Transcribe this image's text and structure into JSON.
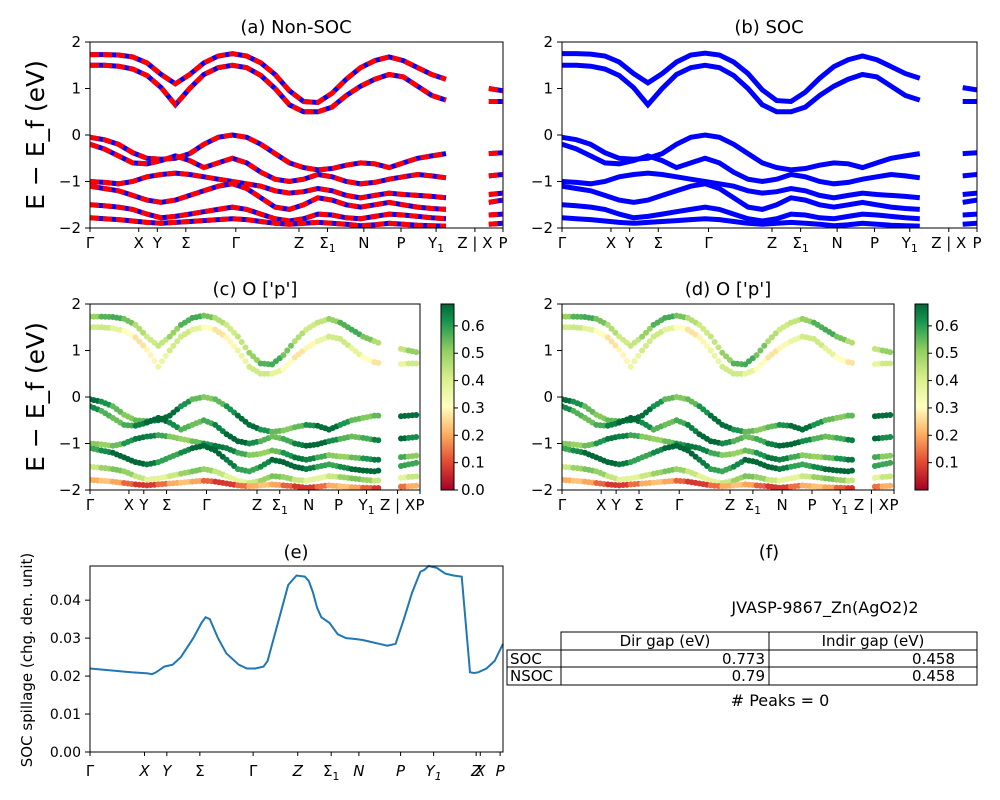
{
  "figure": {
    "ylabel_main": "E − E_f (eV)",
    "ylabel_spill": "SOC spillage (chg. den. unit)"
  },
  "bands_x_ticks": [
    "Γ",
    "X",
    "Y",
    "Σ",
    "Γ",
    "Z",
    "Σ1",
    "N",
    "P",
    "Y1",
    "Z | X",
    "P"
  ],
  "band_y_ticks": [
    "2",
    "1",
    "0",
    "−1",
    "−2"
  ],
  "colorbar_c": {
    "ticks": [
      "0.6",
      "0.5",
      "0.4",
      "0.3",
      "0.2",
      "0.1",
      "0.0"
    ]
  },
  "colorbar_d": {
    "ticks": [
      "0.6",
      "0.5",
      "0.4",
      "0.3",
      "0.2",
      "0.1"
    ]
  },
  "chart_data": [
    {
      "id": "a",
      "type": "line",
      "title": "(a) Non-SOC",
      "ylabel": "E − E_f (eV)",
      "ylim": [
        -2,
        2
      ],
      "colors": [
        "#ff0000",
        "#0000ff"
      ],
      "note_series": "spin-up and spin-down bands drawn as red/blue dashes",
      "series": [
        {
          "values": [
            1.73,
            1.73,
            1.72,
            1.68,
            1.55,
            1.3,
            1.1,
            1.3,
            1.55,
            1.7,
            1.75,
            1.7,
            1.55,
            1.3,
            0.95,
            0.72,
            0.7,
            0.9,
            1.2,
            1.45,
            1.6,
            1.68,
            1.6,
            1.45,
            1.3,
            1.2,
            1.1,
            1.05,
            1.0,
            0.95
          ]
        },
        {
          "values": [
            1.5,
            1.5,
            1.48,
            1.42,
            1.28,
            1.02,
            0.65,
            1.0,
            1.3,
            1.45,
            1.5,
            1.45,
            1.28,
            1.0,
            0.65,
            0.5,
            0.5,
            0.6,
            0.85,
            1.05,
            1.2,
            1.3,
            1.25,
            1.05,
            0.85,
            0.75,
            0.7,
            0.7,
            0.72,
            0.72
          ]
        },
        {
          "values": [
            -0.05,
            -0.1,
            -0.2,
            -0.38,
            -0.5,
            -0.52,
            -0.5,
            -0.4,
            -0.2,
            -0.05,
            0.0,
            -0.05,
            -0.2,
            -0.4,
            -0.6,
            -0.7,
            -0.75,
            -0.72,
            -0.65,
            -0.6,
            -0.62,
            -0.7,
            -0.6,
            -0.5,
            -0.45,
            -0.4,
            -0.4,
            -0.42,
            -0.4,
            -0.38
          ]
        },
        {
          "values": [
            -0.2,
            -0.3,
            -0.45,
            -0.6,
            -0.62,
            -0.55,
            -0.45,
            -0.55,
            -0.7,
            -0.6,
            -0.5,
            -0.6,
            -0.8,
            -0.95,
            -1.0,
            -0.95,
            -0.85,
            -0.9,
            -1.0,
            -1.05,
            -1.02,
            -0.95,
            -0.9,
            -0.85,
            -0.88,
            -0.92,
            -0.95,
            -0.9,
            -0.88,
            -0.85
          ]
        },
        {
          "values": [
            -1.0,
            -1.02,
            -1.05,
            -1.0,
            -0.9,
            -0.85,
            -0.82,
            -0.85,
            -0.9,
            -0.95,
            -1.0,
            -1.05,
            -1.1,
            -1.2,
            -1.25,
            -1.22,
            -1.15,
            -1.2,
            -1.3,
            -1.35,
            -1.3,
            -1.25,
            -1.28,
            -1.3,
            -1.32,
            -1.35,
            -1.35,
            -1.3,
            -1.28,
            -1.25
          ]
        },
        {
          "values": [
            -1.1,
            -1.15,
            -1.2,
            -1.3,
            -1.4,
            -1.45,
            -1.4,
            -1.3,
            -1.2,
            -1.1,
            -1.05,
            -1.15,
            -1.35,
            -1.55,
            -1.6,
            -1.5,
            -1.35,
            -1.4,
            -1.5,
            -1.55,
            -1.5,
            -1.45,
            -1.5,
            -1.55,
            -1.58,
            -1.6,
            -1.55,
            -1.5,
            -1.45,
            -1.4
          ]
        },
        {
          "values": [
            -1.5,
            -1.52,
            -1.55,
            -1.6,
            -1.7,
            -1.78,
            -1.75,
            -1.7,
            -1.65,
            -1.6,
            -1.55,
            -1.6,
            -1.7,
            -1.8,
            -1.85,
            -1.8,
            -1.7,
            -1.72,
            -1.78,
            -1.8,
            -1.75,
            -1.7,
            -1.72,
            -1.75,
            -1.78,
            -1.8,
            -1.78,
            -1.75,
            -1.72,
            -1.7
          ]
        },
        {
          "values": [
            -1.78,
            -1.8,
            -1.82,
            -1.85,
            -1.88,
            -1.9,
            -1.88,
            -1.86,
            -1.84,
            -1.82,
            -1.8,
            -1.82,
            -1.86,
            -1.9,
            -1.92,
            -1.9,
            -1.88,
            -1.9,
            -1.92,
            -1.95,
            -1.93,
            -1.9,
            -1.92,
            -1.94,
            -1.95,
            -1.96,
            -1.95,
            -1.93,
            -1.92,
            -1.9
          ]
        }
      ]
    },
    {
      "id": "b",
      "type": "line",
      "title": "(b) SOC",
      "ylim": [
        -2,
        2
      ],
      "colors": [
        "#0000ff"
      ],
      "series": [
        {
          "values": [
            1.75,
            1.75,
            1.74,
            1.7,
            1.57,
            1.32,
            1.12,
            1.32,
            1.57,
            1.72,
            1.76,
            1.72,
            1.57,
            1.32,
            0.97,
            0.74,
            0.72,
            0.92,
            1.22,
            1.47,
            1.62,
            1.7,
            1.62,
            1.47,
            1.32,
            1.22,
            1.12,
            1.07,
            1.02,
            0.97
          ]
        },
        {
          "values": [
            1.5,
            1.5,
            1.48,
            1.42,
            1.28,
            1.02,
            0.65,
            1.0,
            1.3,
            1.45,
            1.5,
            1.45,
            1.28,
            1.0,
            0.65,
            0.5,
            0.5,
            0.6,
            0.85,
            1.05,
            1.2,
            1.3,
            1.25,
            1.05,
            0.85,
            0.75,
            0.7,
            0.7,
            0.72,
            0.72
          ]
        },
        {
          "values": [
            -0.05,
            -0.1,
            -0.2,
            -0.38,
            -0.5,
            -0.52,
            -0.5,
            -0.4,
            -0.2,
            -0.05,
            0.0,
            -0.05,
            -0.2,
            -0.4,
            -0.6,
            -0.7,
            -0.75,
            -0.72,
            -0.65,
            -0.6,
            -0.62,
            -0.7,
            -0.6,
            -0.5,
            -0.45,
            -0.4,
            -0.4,
            -0.42,
            -0.4,
            -0.38
          ]
        },
        {
          "values": [
            -0.2,
            -0.3,
            -0.45,
            -0.6,
            -0.62,
            -0.55,
            -0.45,
            -0.55,
            -0.7,
            -0.6,
            -0.5,
            -0.6,
            -0.8,
            -0.95,
            -1.0,
            -0.95,
            -0.85,
            -0.9,
            -1.0,
            -1.05,
            -1.02,
            -0.95,
            -0.9,
            -0.85,
            -0.88,
            -0.92,
            -0.95,
            -0.9,
            -0.88,
            -0.85
          ]
        },
        {
          "values": [
            -1.0,
            -1.02,
            -1.05,
            -1.0,
            -0.9,
            -0.85,
            -0.82,
            -0.85,
            -0.9,
            -0.95,
            -1.0,
            -1.05,
            -1.1,
            -1.2,
            -1.25,
            -1.22,
            -1.15,
            -1.2,
            -1.3,
            -1.35,
            -1.3,
            -1.25,
            -1.28,
            -1.3,
            -1.32,
            -1.35,
            -1.35,
            -1.3,
            -1.28,
            -1.25
          ]
        },
        {
          "values": [
            -1.1,
            -1.15,
            -1.2,
            -1.3,
            -1.4,
            -1.45,
            -1.4,
            -1.3,
            -1.2,
            -1.1,
            -1.05,
            -1.15,
            -1.35,
            -1.55,
            -1.6,
            -1.5,
            -1.35,
            -1.4,
            -1.5,
            -1.55,
            -1.5,
            -1.45,
            -1.5,
            -1.55,
            -1.58,
            -1.6,
            -1.55,
            -1.5,
            -1.45,
            -1.4
          ]
        },
        {
          "values": [
            -1.5,
            -1.52,
            -1.55,
            -1.6,
            -1.7,
            -1.78,
            -1.75,
            -1.7,
            -1.65,
            -1.6,
            -1.55,
            -1.6,
            -1.7,
            -1.8,
            -1.85,
            -1.8,
            -1.7,
            -1.72,
            -1.78,
            -1.8,
            -1.75,
            -1.7,
            -1.72,
            -1.75,
            -1.78,
            -1.8,
            -1.78,
            -1.75,
            -1.72,
            -1.7
          ]
        },
        {
          "values": [
            -1.78,
            -1.8,
            -1.82,
            -1.85,
            -1.88,
            -1.9,
            -1.88,
            -1.86,
            -1.84,
            -1.82,
            -1.8,
            -1.82,
            -1.86,
            -1.9,
            -1.92,
            -1.9,
            -1.88,
            -1.9,
            -1.92,
            -1.95,
            -1.93,
            -1.9,
            -1.92,
            -1.94,
            -1.95,
            -1.96,
            -1.95,
            -1.93,
            -1.92,
            -1.9
          ]
        }
      ]
    },
    {
      "id": "c",
      "type": "scatter",
      "title": "(c)  O ['p']",
      "ylabel": "E − E_f (eV)",
      "ylim": [
        -2,
        2
      ],
      "colorbar_range": [
        0.0,
        0.68
      ],
      "series_weights": [
        0.5,
        0.35,
        0.6,
        0.62,
        0.58,
        0.66,
        0.45,
        0.15
      ]
    },
    {
      "id": "d",
      "type": "scatter",
      "title": "(d) O ['p']",
      "ylim": [
        -2,
        2
      ],
      "colorbar_range": [
        0.0,
        0.68
      ],
      "series_weights": [
        0.5,
        0.35,
        0.6,
        0.62,
        0.58,
        0.66,
        0.45,
        0.15
      ]
    },
    {
      "id": "e",
      "type": "line",
      "title": "(e)",
      "ylabel": "SOC spillage (chg. den. unit)",
      "x_ticks": [
        "Γ",
        "X",
        "Y",
        "Σ",
        "Γ",
        "Z",
        "Σ1",
        "N",
        "P",
        "Y1",
        "Z",
        "X",
        "P"
      ],
      "y_ticks": [
        "0.04",
        "0.03",
        "0.02",
        "0.01",
        "0.00"
      ],
      "ylim": [
        0.0,
        0.049
      ],
      "color": "#1f77b4",
      "x": [
        0.0,
        0.05,
        0.1,
        0.14,
        0.15,
        0.16,
        0.18,
        0.2,
        0.22,
        0.25,
        0.27,
        0.28,
        0.29,
        0.31,
        0.33,
        0.36,
        0.38,
        0.4,
        0.42,
        0.43,
        0.44,
        0.46,
        0.48,
        0.5,
        0.52,
        0.53,
        0.54,
        0.55,
        0.56,
        0.58,
        0.6,
        0.62,
        0.64,
        0.66,
        0.68,
        0.7,
        0.72,
        0.74,
        0.76,
        0.78,
        0.8,
        0.81,
        0.82,
        0.84,
        0.86,
        0.88,
        0.9,
        0.92,
        0.93,
        0.94,
        0.96,
        0.98,
        1.0
      ],
      "values": [
        0.022,
        0.0215,
        0.021,
        0.0207,
        0.0205,
        0.021,
        0.0225,
        0.023,
        0.025,
        0.03,
        0.034,
        0.0355,
        0.035,
        0.03,
        0.026,
        0.023,
        0.022,
        0.022,
        0.0225,
        0.024,
        0.028,
        0.036,
        0.044,
        0.0465,
        0.0462,
        0.045,
        0.042,
        0.038,
        0.0355,
        0.034,
        0.031,
        0.03,
        0.0298,
        0.0295,
        0.029,
        0.0285,
        0.028,
        0.0285,
        0.035,
        0.042,
        0.0475,
        0.048,
        0.049,
        0.0485,
        0.047,
        0.0465,
        0.0462,
        0.021,
        0.0208,
        0.021,
        0.022,
        0.024,
        0.0285
      ]
    },
    {
      "id": "f",
      "type": "table",
      "title": "(f)",
      "subtitle": "JVASP-9867_Zn(AgO2)2",
      "columns": [
        "Dir gap (eV)",
        "Indir gap (eV)"
      ],
      "rows": [
        {
          "label": "SOC",
          "values": [
            "0.773",
            "0.458"
          ]
        },
        {
          "label": "NSOC",
          "values": [
            "0.79",
            "0.458"
          ]
        }
      ],
      "footer": "# Peaks = 0"
    }
  ]
}
